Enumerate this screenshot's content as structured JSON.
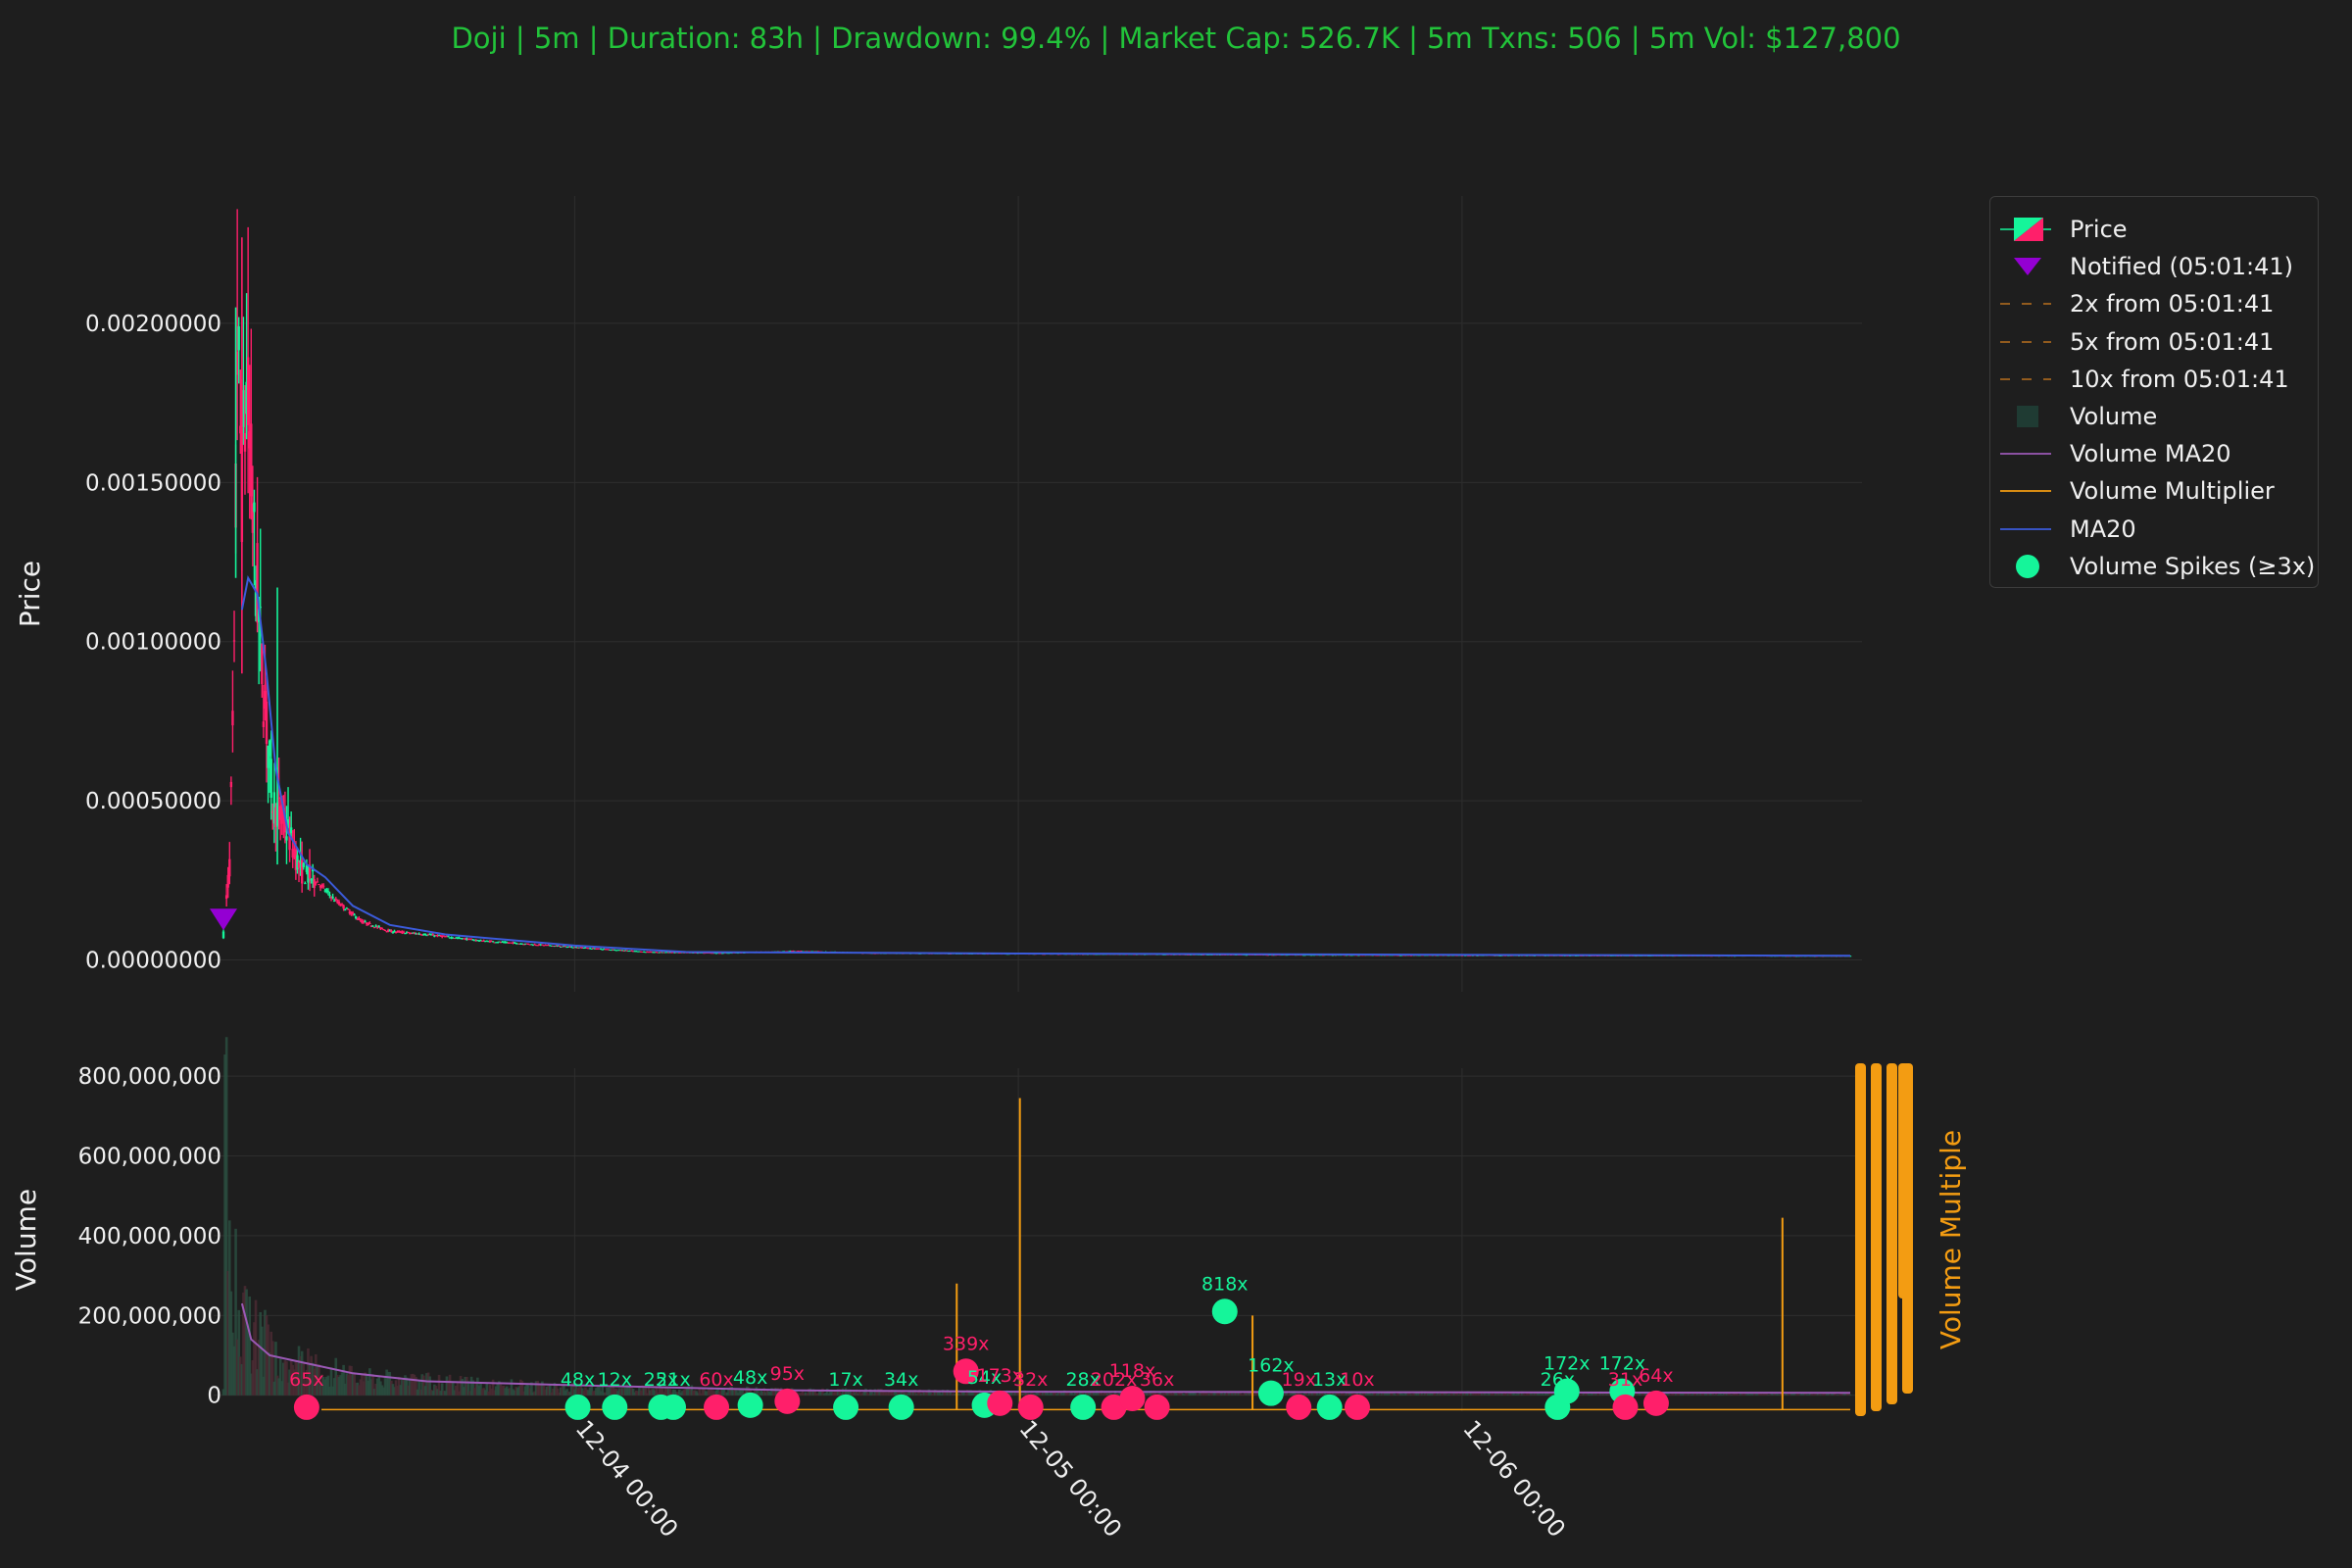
{
  "title": "Doji | 5m | Duration: 83h | Drawdown: 99.4% | Market Cap: 526.7K | 5m Txns: 506 | 5m Vol: $127,800",
  "colors": {
    "background": "#1e1e1e",
    "title": "#22c33a",
    "up": "#15f59a",
    "down": "#ff1f6a",
    "notify": "#9400d3",
    "ma20": "#3b5bdb",
    "volume_ma20": "#9b59b6",
    "volume_multiplier": "#f39c12",
    "volume_bar": "#1f3b33",
    "grid": "#2e2e2e"
  },
  "legend": {
    "items": [
      {
        "label": "Price",
        "icon": "candle-icon"
      },
      {
        "label": "Notified (05:01:41)",
        "icon": "triangle-down-icon"
      },
      {
        "label": "2x from 05:01:41",
        "icon": "dashed-line-icon"
      },
      {
        "label": "5x from 05:01:41",
        "icon": "dashed-line-icon"
      },
      {
        "label": "10x from 05:01:41",
        "icon": "dashed-line-icon"
      },
      {
        "label": "Volume",
        "icon": "square-icon"
      },
      {
        "label": "Volume MA20",
        "icon": "line-icon"
      },
      {
        "label": "Volume Multiplier",
        "icon": "line-icon"
      },
      {
        "label": "MA20",
        "icon": "line-icon"
      },
      {
        "label": "Volume Spikes (≥3x)",
        "icon": "circle-icon"
      }
    ]
  },
  "chart_data": [
    {
      "type": "candlestick",
      "panel": "price",
      "ylabel": "Price",
      "ylim": [
        -0.0001,
        0.0024
      ],
      "yticks": [
        0.0,
        0.0005,
        0.001,
        0.0015,
        0.002
      ],
      "ytick_labels": [
        "0.00000000",
        "0.00050000",
        "0.00100000",
        "0.00150000",
        "0.00200000"
      ],
      "xaxis": {
        "start": "12-03 05:00",
        "end": "12-06 21:00",
        "ticks": [
          "12-04 00:00",
          "12-05 00:00",
          "12-06 00:00"
        ]
      },
      "price_path": [
        [
          "12-03 05:00",
          8e-05
        ],
        [
          "12-03 05:20",
          0.0003
        ],
        [
          "12-03 05:35",
          0.0009
        ],
        [
          "12-03 05:45",
          0.00195
        ],
        [
          "12-03 06:00",
          0.0015
        ],
        [
          "12-03 06:15",
          0.0018
        ],
        [
          "12-03 06:40",
          0.0013
        ],
        [
          "12-03 07:10",
          0.00085
        ],
        [
          "12-03 07:40",
          0.0005
        ],
        [
          "12-03 08:30",
          0.0004
        ],
        [
          "12-03 09:10",
          0.00028
        ],
        [
          "12-03 10:00",
          0.00025
        ],
        [
          "12-03 11:00",
          0.00019
        ],
        [
          "12-03 12:30",
          0.00012
        ],
        [
          "12-03 14:00",
          9e-05
        ],
        [
          "12-03 16:00",
          8e-05
        ],
        [
          "12-03 19:00",
          6e-05
        ],
        [
          "12-04 00:00",
          4e-05
        ],
        [
          "12-04 04:00",
          2.5e-05
        ],
        [
          "12-04 08:00",
          2.2e-05
        ],
        [
          "12-04 12:00",
          2.8e-05
        ],
        [
          "12-04 16:00",
          2.2e-05
        ],
        [
          "12-05 00:00",
          2e-05
        ],
        [
          "12-05 12:00",
          1.7e-05
        ],
        [
          "12-06 00:00",
          1.5e-05
        ],
        [
          "12-06 12:00",
          1.4e-05
        ],
        [
          "12-06 21:00",
          1.3e-05
        ]
      ],
      "notified": {
        "label": "Notified (05:01:41)",
        "time": "12-03 05:00",
        "price": 0.00013
      },
      "ma20_path": [
        [
          "12-03 06:00",
          0.0011
        ],
        [
          "12-03 06:20",
          0.0012
        ],
        [
          "12-03 06:50",
          0.00115
        ],
        [
          "12-03 07:20",
          0.0009
        ],
        [
          "12-03 07:50",
          0.0006
        ],
        [
          "12-03 08:30",
          0.0004
        ],
        [
          "12-03 09:30",
          0.0003
        ],
        [
          "12-03 10:30",
          0.00026
        ],
        [
          "12-03 12:00",
          0.00017
        ],
        [
          "12-03 14:00",
          0.00011
        ],
        [
          "12-03 17:00",
          8e-05
        ],
        [
          "12-04 00:00",
          4.5e-05
        ],
        [
          "12-04 06:00",
          2.5e-05
        ],
        [
          "12-05 00:00",
          2e-05
        ],
        [
          "12-06 21:00",
          1.3e-05
        ]
      ]
    },
    {
      "type": "bar",
      "panel": "volume",
      "ylabel": "Volume",
      "y2label": "Volume Multiple",
      "ylim": [
        -40000000,
        820000000
      ],
      "yticks": [
        0,
        200000000,
        400000000,
        600000000,
        800000000
      ],
      "ytick_labels": [
        "0",
        "200,000,000",
        "400,000,000",
        "600,000,000",
        "800,000,000"
      ],
      "volume_path": [
        [
          "12-03 05:00",
          20000000
        ],
        [
          "12-03 05:05",
          780000000
        ],
        [
          "12-03 05:15",
          500000000
        ],
        [
          "12-03 05:30",
          300000000
        ],
        [
          "12-03 06:00",
          200000000
        ],
        [
          "12-03 07:00",
          150000000
        ],
        [
          "12-03 08:00",
          90000000
        ],
        [
          "12-03 10:00",
          70000000
        ],
        [
          "12-03 13:00",
          45000000
        ],
        [
          "12-03 18:00",
          30000000
        ],
        [
          "12-04 00:00",
          20000000
        ],
        [
          "12-04 12:00",
          12000000
        ],
        [
          "12-05 00:00",
          8000000
        ],
        [
          "12-06 21:00",
          5000000
        ]
      ],
      "volume_ma20_path": [
        [
          "12-03 06:00",
          230000000
        ],
        [
          "12-03 06:30",
          140000000
        ],
        [
          "12-03 07:30",
          100000000
        ],
        [
          "12-03 09:00",
          85000000
        ],
        [
          "12-03 12:00",
          55000000
        ],
        [
          "12-03 16:00",
          35000000
        ],
        [
          "12-04 00:00",
          25000000
        ],
        [
          "12-04 12:00",
          12000000
        ],
        [
          "12-05 00:00",
          9000000
        ],
        [
          "12-06 21:00",
          6000000
        ]
      ],
      "multiplier_spikes": [
        {
          "time": "12-04 20:40",
          "value": 280000000
        },
        {
          "time": "12-05 00:05",
          "value": 745000000
        },
        {
          "time": "12-05 12:40",
          "value": 200000000
        },
        {
          "time": "12-06 17:20",
          "value": 445000000
        }
      ],
      "spikes": [
        {
          "time": "12-03 09:30",
          "y": -30000000,
          "label": "65x",
          "dir": "down"
        },
        {
          "time": "12-04 00:10",
          "y": -30000000,
          "label": "48x",
          "dir": "up"
        },
        {
          "time": "12-04 02:10",
          "y": -30000000,
          "label": "12x",
          "dir": "up"
        },
        {
          "time": "12-04 04:40",
          "y": -30000000,
          "label": "25x",
          "dir": "up"
        },
        {
          "time": "12-04 05:20",
          "y": -30000000,
          "label": "21x",
          "dir": "up"
        },
        {
          "time": "12-04 07:40",
          "y": -30000000,
          "label": "60x",
          "dir": "down"
        },
        {
          "time": "12-04 09:30",
          "y": -25000000,
          "label": "48x",
          "dir": "up"
        },
        {
          "time": "12-04 11:30",
          "y": -15000000,
          "label": "95x",
          "dir": "down"
        },
        {
          "time": "12-04 14:40",
          "y": -30000000,
          "label": "17x",
          "dir": "up"
        },
        {
          "time": "12-04 17:40",
          "y": -30000000,
          "label": "34x",
          "dir": "up"
        },
        {
          "time": "12-04 21:10",
          "y": 60000000,
          "label": "339x",
          "dir": "down"
        },
        {
          "time": "12-04 22:10",
          "y": -25000000,
          "label": "54x",
          "dir": "up"
        },
        {
          "time": "12-04 23:00",
          "y": -20000000,
          "label": "173x",
          "dir": "down"
        },
        {
          "time": "12-05 00:40",
          "y": -30000000,
          "label": "32x",
          "dir": "down"
        },
        {
          "time": "12-05 03:30",
          "y": -30000000,
          "label": "28x",
          "dir": "up"
        },
        {
          "time": "12-05 05:10",
          "y": -30000000,
          "label": "202x",
          "dir": "down"
        },
        {
          "time": "12-05 06:10",
          "y": -8000000,
          "label": "118x",
          "dir": "down"
        },
        {
          "time": "12-05 07:30",
          "y": -30000000,
          "label": "36x",
          "dir": "down"
        },
        {
          "time": "12-05 11:10",
          "y": 210000000,
          "label": "818x",
          "dir": "up"
        },
        {
          "time": "12-05 13:40",
          "y": 5000000,
          "label": "162x",
          "dir": "up"
        },
        {
          "time": "12-05 15:10",
          "y": -30000000,
          "label": "19x",
          "dir": "down"
        },
        {
          "time": "12-05 16:50",
          "y": -30000000,
          "label": "13x",
          "dir": "up"
        },
        {
          "time": "12-05 18:20",
          "y": -30000000,
          "label": "10x",
          "dir": "down"
        },
        {
          "time": "12-06 05:10",
          "y": -30000000,
          "label": "26x",
          "dir": "up"
        },
        {
          "time": "12-06 05:40",
          "y": 10000000,
          "label": "172x",
          "dir": "up"
        },
        {
          "time": "12-06 08:40",
          "y": 10000000,
          "label": "172x",
          "dir": "up"
        },
        {
          "time": "12-06 08:50",
          "y": -30000000,
          "label": "31x",
          "dir": "down"
        },
        {
          "time": "12-06 10:30",
          "y": -20000000,
          "label": "64x",
          "dir": "down"
        }
      ]
    }
  ]
}
